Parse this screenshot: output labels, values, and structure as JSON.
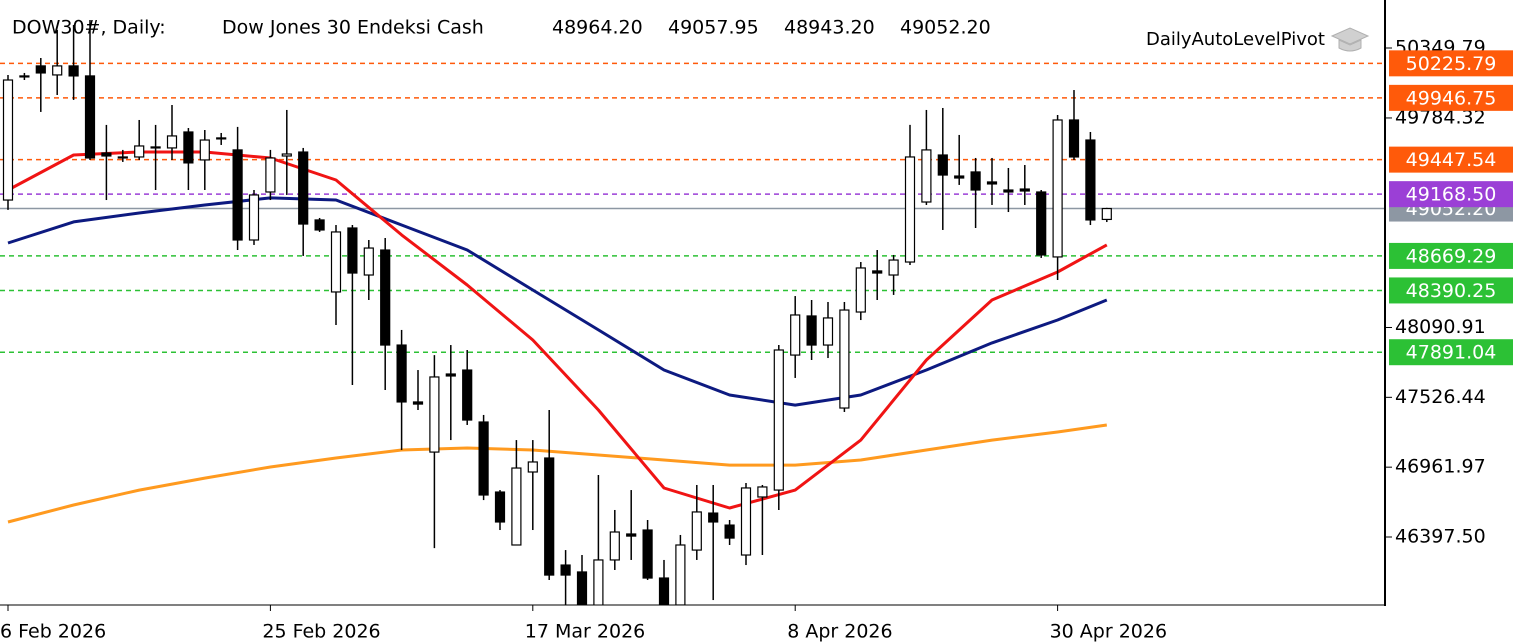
{
  "chart_data": {
    "type": "candlestick",
    "symbol": "DOW30#, Daily:",
    "description": "Dow Jones 30 Endeksi Cash",
    "ohlc": [
      "48964.20",
      "49057.95",
      "48943.20",
      "49052.20"
    ],
    "indicator": "DailyAutoLevelPivot",
    "categories": [
      "6 Feb 2026",
      null,
      null,
      null,
      null,
      null,
      null,
      null,
      null,
      null,
      null,
      null,
      null,
      null,
      null,
      null,
      "25 Feb 2026",
      null,
      null,
      null,
      null,
      null,
      null,
      null,
      null,
      null,
      null,
      null,
      null,
      null,
      null,
      null,
      "17 Mar 2026",
      null,
      null,
      null,
      null,
      null,
      null,
      null,
      null,
      null,
      null,
      null,
      null,
      null,
      null,
      null,
      "8 Apr 2026",
      null,
      null,
      null,
      null,
      null,
      null,
      null,
      null,
      null,
      null,
      null,
      null,
      null,
      null,
      null,
      "30 Apr 2026",
      null,
      null,
      null
    ],
    "open": [
      49121,
      50116,
      50205,
      50132,
      50205,
      50124,
      49501,
      49469,
      49469,
      49542,
      49542,
      49671,
      49445,
      49615,
      49526,
      48798,
      49186,
      49477,
      49509,
      48960,
      48378,
      48895,
      48515,
      48717,
      47949,
      47489,
      47084,
      47715,
      47747,
      47327,
      46761,
      46333,
      46923,
      47036,
      46171,
      46115,
      45807,
      46212,
      46422,
      46454,
      46066,
      45848,
      46292,
      46591,
      46494,
      46252,
      46721,
      46777,
      47868,
      48184,
      47949,
      47440,
      48216,
      48548,
      48515,
      48620,
      49105,
      49485,
      49315,
      49348,
      49267,
      49202,
      49210,
      49186,
      48661,
      49768,
      49606,
      48964.2
    ],
    "high": [
      50132,
      50148,
      50269,
      50496,
      50536,
      50576,
      49728,
      49526,
      49768,
      49728,
      49889,
      49703,
      49687,
      49663,
      49712,
      49202,
      49526,
      49849,
      49542,
      48976,
      48919,
      48919,
      48798,
      48814,
      48071,
      47747,
      47868,
      47949,
      47909,
      47384,
      46777,
      47181,
      47181,
      47424,
      46292,
      46252,
      46899,
      46616,
      46777,
      46535,
      46212,
      46414,
      46818,
      46818,
      46535,
      46834,
      46818,
      47949,
      48345,
      48313,
      48297,
      48297,
      48620,
      48717,
      48677,
      49728,
      49849,
      49865,
      49647,
      49461,
      49461,
      49380,
      49404,
      49202,
      49808,
      50010,
      49671,
      49057.95
    ],
    "low": [
      49041,
      50091,
      49833,
      49970,
      49930,
      49445,
      49121,
      49429,
      49445,
      49202,
      49445,
      49202,
      49202,
      49566,
      48717,
      48758,
      49121,
      49162,
      48669,
      48863,
      48111,
      47626,
      48313,
      47586,
      47101,
      47424,
      46308,
      47181,
      47303,
      46696,
      46454,
      46333,
      46454,
      46050,
      45807,
      45791,
      45791,
      46131,
      46212,
      46050,
      45767,
      45791,
      46212,
      45888,
      46333,
      46171,
      46252,
      46616,
      47683,
      47828,
      47844,
      47408,
      48151,
      48313,
      48354,
      48596,
      49081,
      48879,
      49243,
      48895,
      49081,
      49024,
      49081,
      48653,
      48475,
      49445,
      48919,
      48943.2
    ],
    "close": [
      50091,
      50124,
      50148,
      50205,
      50124,
      49461,
      49477,
      49461,
      49558,
      49550,
      49639,
      49421,
      49606,
      49623,
      48798,
      49162,
      49461,
      49493,
      48927,
      48879,
      48863,
      48531,
      48733,
      47949,
      47489,
      47472,
      47691,
      47699,
      47343,
      46737,
      46519,
      46955,
      47004,
      46090,
      46090,
      45807,
      46212,
      46438,
      46405,
      46066,
      45791,
      46333,
      46600,
      46519,
      46389,
      46794,
      46802,
      47909,
      48192,
      47949,
      48168,
      48232,
      48572,
      48531,
      48636,
      49469,
      49526,
      49323,
      49299,
      49202,
      49251,
      49186,
      49194,
      48677,
      49768,
      49469,
      48960,
      49052.2
    ],
    "up_color": "#ffffff",
    "down_color": "#000000",
    "lines": [
      {
        "color": "#ff9a1f",
        "x": [
          0,
          4,
          8,
          12,
          16,
          20,
          24,
          28,
          32,
          36,
          40,
          44,
          48,
          52,
          56,
          60,
          64,
          67
        ],
        "values": [
          46519,
          46656,
          46777,
          46874,
          46963,
          47036,
          47101,
          47117,
          47101,
          47060,
          47020,
          46979,
          46979,
          47020,
          47101,
          47181,
          47246,
          47303
        ]
      },
      {
        "color": "#0d1a80",
        "x": [
          0,
          4,
          8,
          12,
          16,
          20,
          24,
          28,
          32,
          36,
          40,
          44,
          48,
          52,
          56,
          60,
          64,
          67
        ],
        "values": [
          48774,
          48944,
          49016,
          49081,
          49138,
          49121,
          48919,
          48717,
          48394,
          48071,
          47747,
          47545,
          47464,
          47545,
          47747,
          47966,
          48151,
          48313
        ]
      },
      {
        "color": "#f01414",
        "x": [
          0,
          4,
          8,
          12,
          16,
          20,
          24,
          28,
          32,
          36,
          40,
          44,
          48,
          52,
          56,
          60,
          64,
          67
        ],
        "values": [
          49202,
          49485,
          49509,
          49509,
          49461,
          49283,
          48839,
          48434,
          47990,
          47424,
          46794,
          46632,
          46777,
          47181,
          47828,
          48313,
          48539,
          48758
        ]
      }
    ],
    "levels": [
      {
        "value": 49052.2,
        "label": "49052.20",
        "color": "#8d97a3",
        "style": "solid"
      },
      {
        "value": 50225.79,
        "color": "#ff5a0a",
        "style": "dashed"
      },
      {
        "value": 49946.75,
        "color": "#ff5a0a",
        "style": "dashed"
      },
      {
        "value": 49447.54,
        "color": "#ff5a0a",
        "style": "dashed"
      },
      {
        "value": 49168.5,
        "label": "49168.50",
        "color": "#9b3fd6",
        "style": "dashed"
      },
      {
        "value": 48669.29,
        "color": "#2cc135",
        "style": "dashed"
      },
      {
        "value": 48390.25,
        "color": "#2cc135",
        "style": "dashed"
      },
      {
        "value": 47891.04,
        "color": "#2cc135",
        "style": "dashed"
      }
    ],
    "ylim": [
      45848,
      50673
    ],
    "yticks": [
      50349.79,
      49784.32,
      48090.91,
      47526.44,
      46961.97,
      {
        "value": 46397.5,
        "label": "46397.50"
      }
    ]
  }
}
